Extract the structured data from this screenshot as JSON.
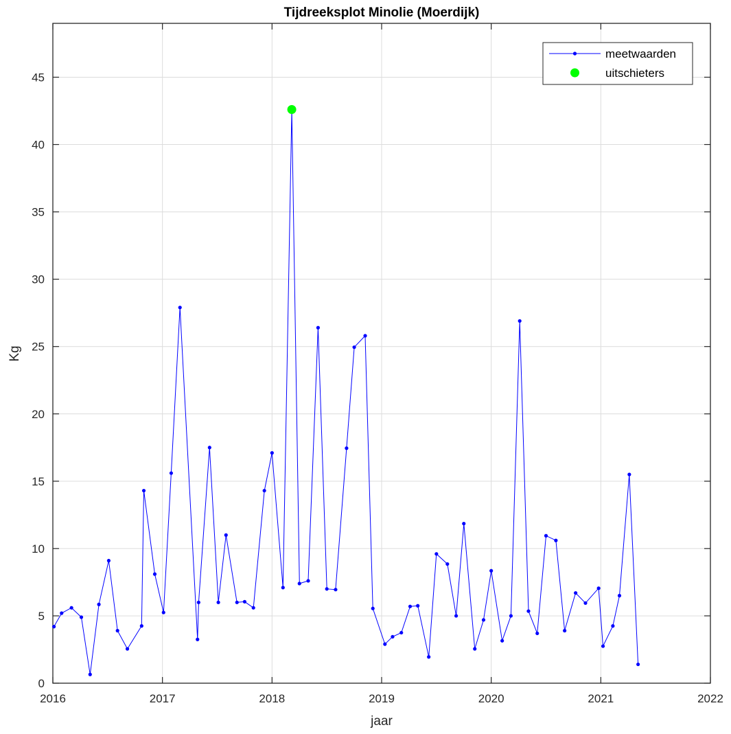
{
  "chart_data": {
    "type": "line",
    "title": "Tijdreeksplot Minolie (Moerdijk)",
    "xlabel": "jaar",
    "ylabel": "Kg",
    "xlim": [
      2016,
      2022
    ],
    "ylim": [
      0,
      49
    ],
    "x_ticks": [
      "2016",
      "2017",
      "2018",
      "2019",
      "2020",
      "2021",
      "2022"
    ],
    "y_ticks": [
      "0",
      "5",
      "10",
      "15",
      "20",
      "25",
      "30",
      "35",
      "40",
      "45"
    ],
    "grid": true,
    "legend_position": "top-right",
    "series": [
      {
        "name": "meetwaarden",
        "color": "#0000ff",
        "style": "line-with-dots",
        "x": [
          2016.01,
          2016.08,
          2016.17,
          2016.26,
          2016.34,
          2016.42,
          2016.51,
          2016.59,
          2016.68,
          2016.81,
          2016.83,
          2016.93,
          2017.01,
          2017.08,
          2017.16,
          2017.32,
          2017.33,
          2017.43,
          2017.51,
          2017.58,
          2017.68,
          2017.75,
          2017.83,
          2017.93,
          2018.0,
          2018.1,
          2018.18,
          2018.25,
          2018.33,
          2018.42,
          2018.5,
          2018.58,
          2018.68,
          2018.75,
          2018.85,
          2018.92,
          2019.03,
          2019.1,
          2019.18,
          2019.26,
          2019.33,
          2019.43,
          2019.5,
          2019.6,
          2019.68,
          2019.75,
          2019.85,
          2019.93,
          2020.0,
          2020.1,
          2020.18,
          2020.26,
          2020.34,
          2020.42,
          2020.5,
          2020.59,
          2020.67,
          2020.77,
          2020.86,
          2020.98,
          2021.02,
          2021.11,
          2021.17,
          2021.26,
          2021.34
        ],
        "y": [
          4.2,
          5.2,
          5.6,
          4.9,
          0.65,
          5.85,
          9.1,
          3.9,
          2.55,
          4.25,
          14.3,
          8.1,
          5.25,
          15.6,
          27.9,
          3.25,
          6.0,
          17.5,
          6.0,
          11.0,
          6.0,
          6.05,
          5.6,
          14.3,
          17.1,
          7.1,
          42.6,
          7.4,
          7.6,
          26.4,
          7.0,
          6.95,
          17.45,
          24.95,
          25.8,
          5.55,
          2.9,
          3.45,
          3.75,
          5.7,
          5.75,
          1.95,
          9.6,
          8.85,
          5.0,
          11.85,
          2.55,
          4.7,
          8.35,
          3.15,
          5.0,
          26.9,
          5.35,
          3.7,
          10.95,
          10.6,
          3.9,
          6.7,
          5.95,
          7.05,
          2.75,
          4.25,
          6.5,
          15.5,
          1.4
        ]
      },
      {
        "name": "uitschieters",
        "color": "#00ff00",
        "style": "markers",
        "x": [
          2018.18
        ],
        "y": [
          42.6
        ]
      }
    ]
  }
}
